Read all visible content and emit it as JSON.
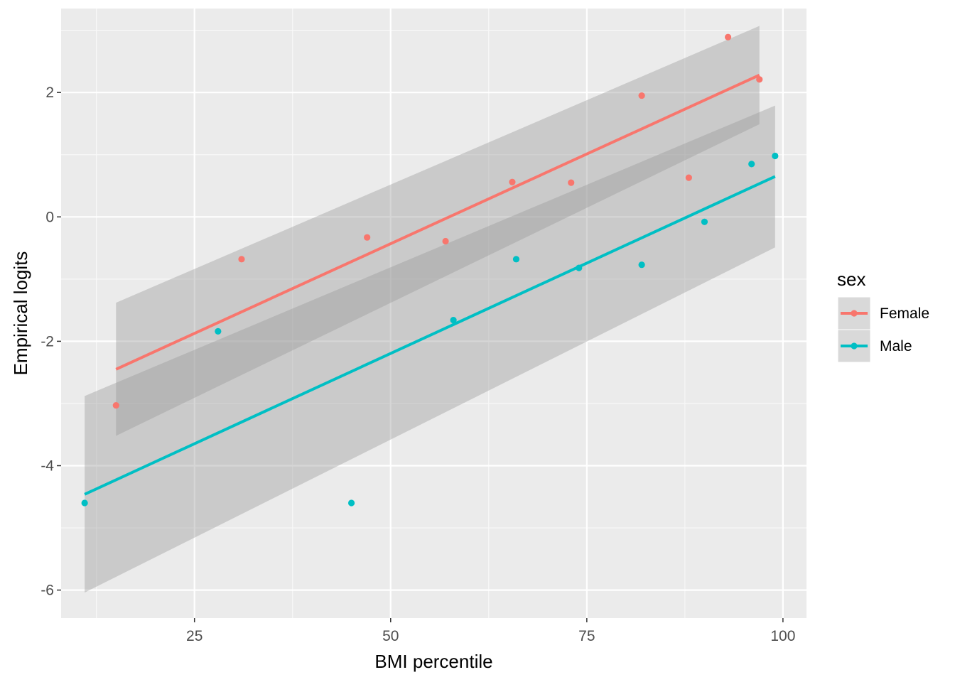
{
  "chart_data": {
    "type": "scatter",
    "title": "",
    "xlabel": "BMI percentile",
    "ylabel": "Empirical logits",
    "xlim": [
      8,
      103
    ],
    "ylim": [
      -6.45,
      3.35
    ],
    "x_ticks": [
      25,
      50,
      75,
      100
    ],
    "x_tick_labels": [
      "25",
      "50",
      "75",
      "100"
    ],
    "y_ticks": [
      -6,
      -4,
      -2,
      0,
      2
    ],
    "y_tick_labels": [
      "-6",
      "-4",
      "-2",
      "0",
      "2"
    ],
    "grid": true,
    "legend": {
      "title": "sex",
      "position": "right"
    },
    "series": [
      {
        "name": "Female",
        "color": "#F8766D",
        "points": [
          {
            "x": 15,
            "y": -3.03
          },
          {
            "x": 31,
            "y": -0.68
          },
          {
            "x": 47,
            "y": -0.33
          },
          {
            "x": 57,
            "y": -0.39
          },
          {
            "x": 65.5,
            "y": 0.56
          },
          {
            "x": 73,
            "y": 0.55
          },
          {
            "x": 82,
            "y": 1.95
          },
          {
            "x": 88,
            "y": 0.63
          },
          {
            "x": 93,
            "y": 2.89
          },
          {
            "x": 97,
            "y": 2.21
          }
        ],
        "fit": {
          "x": [
            15,
            97
          ],
          "y": [
            -2.45,
            2.28
          ]
        },
        "ci": {
          "x": [
            15,
            97
          ],
          "lower": [
            -3.52,
            1.49
          ],
          "upper": [
            -1.38,
            3.07
          ]
        }
      },
      {
        "name": "Male",
        "color": "#00BFC4",
        "points": [
          {
            "x": 11,
            "y": -4.6
          },
          {
            "x": 28,
            "y": -1.84
          },
          {
            "x": 45,
            "y": -4.6
          },
          {
            "x": 58,
            "y": -1.66
          },
          {
            "x": 66,
            "y": -0.68
          },
          {
            "x": 74,
            "y": -0.82
          },
          {
            "x": 82,
            "y": -0.77
          },
          {
            "x": 90,
            "y": -0.08
          },
          {
            "x": 96,
            "y": 0.85
          },
          {
            "x": 99,
            "y": 0.98
          }
        ],
        "fit": {
          "x": [
            11,
            99
          ],
          "y": [
            -4.46,
            0.65
          ]
        },
        "ci": {
          "x": [
            11,
            99
          ],
          "lower": [
            -6.04,
            -0.49
          ],
          "upper": [
            -2.88,
            1.79
          ]
        }
      }
    ]
  }
}
